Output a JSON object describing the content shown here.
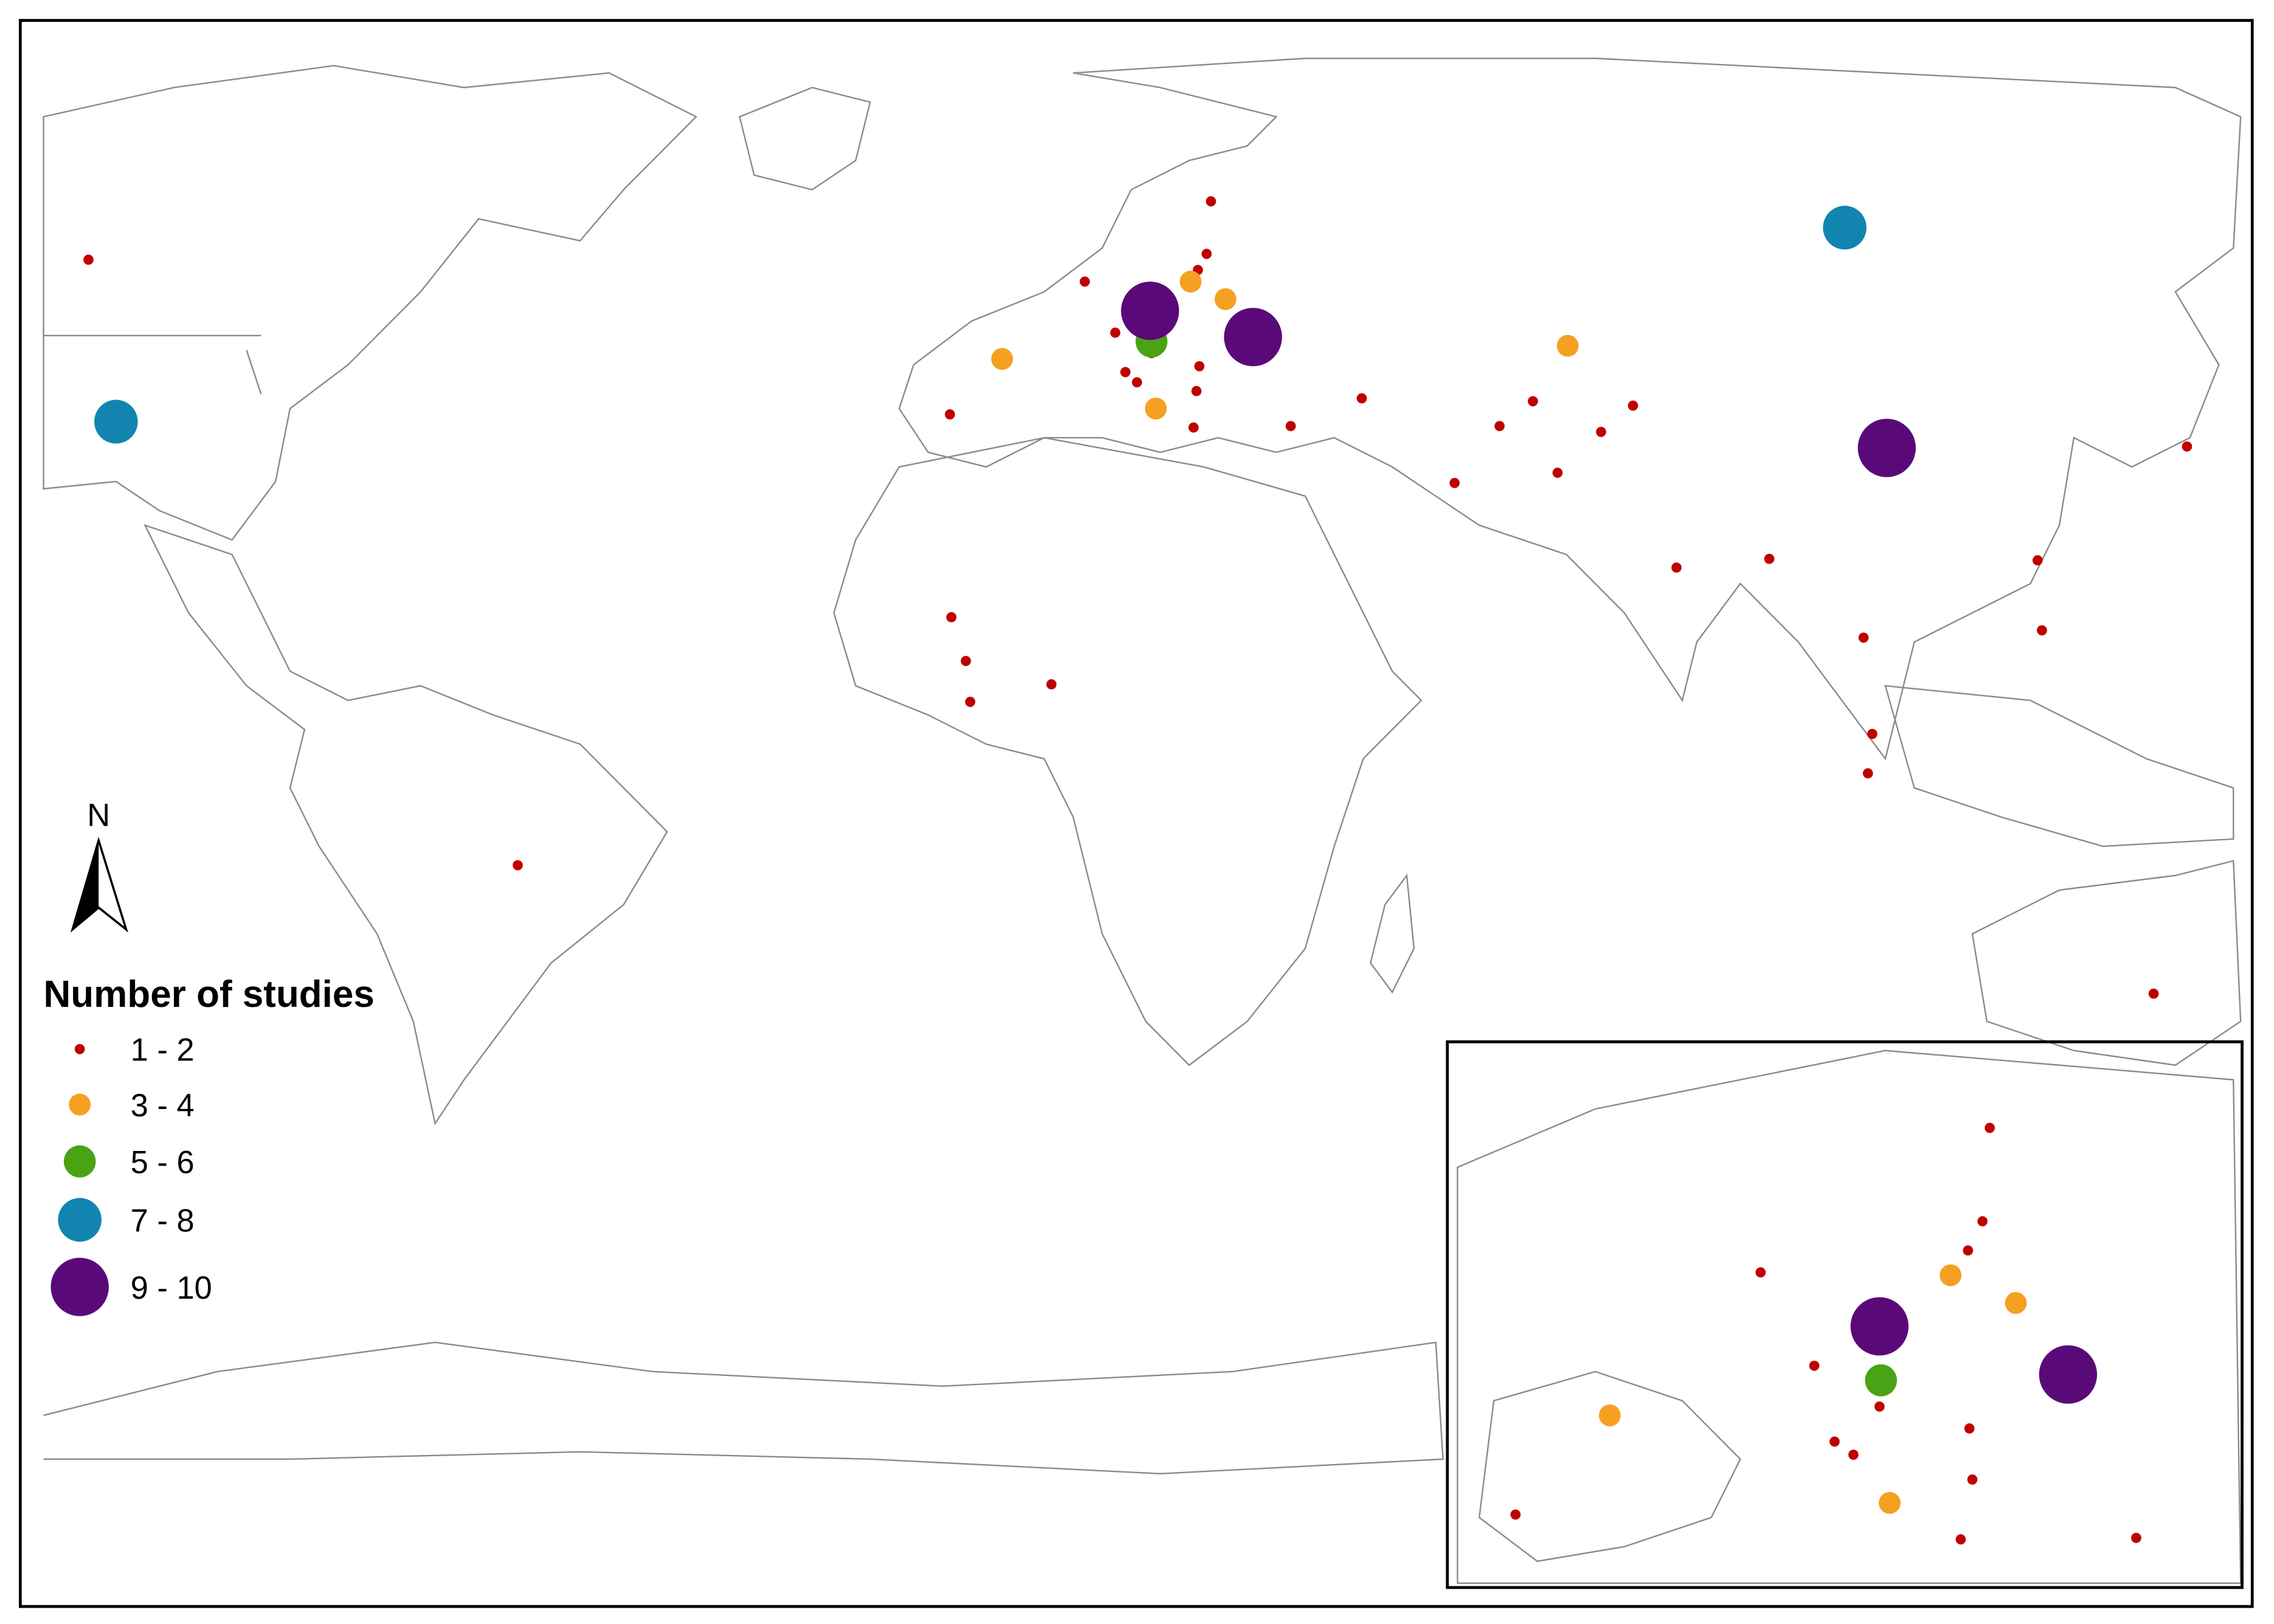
{
  "map": {
    "north_label": "N",
    "legend": {
      "title": "Number of studies",
      "items": [
        {
          "label": "1 - 2",
          "color": "#c00000"
        },
        {
          "label": "3 - 4",
          "color": "#f5a020"
        },
        {
          "label": "5 - 6",
          "color": "#4aa315"
        },
        {
          "label": "7 - 8",
          "color": "#1185b0"
        },
        {
          "label": "9 - 10",
          "color": "#5a0a78"
        }
      ]
    }
  }
}
